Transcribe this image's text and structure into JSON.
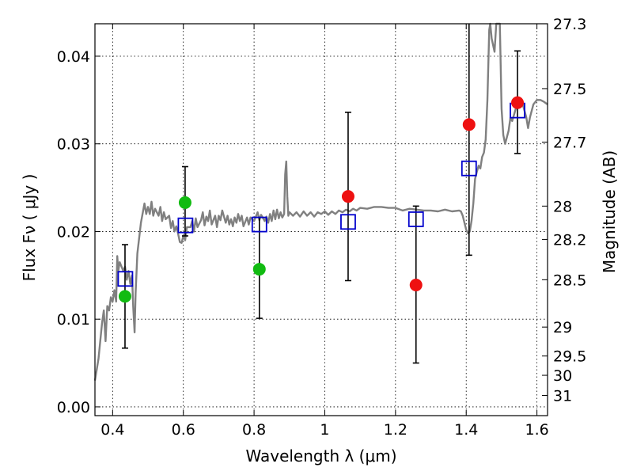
{
  "chart_data": {
    "type": "scatter",
    "xlabel": "Wavelength  λ (μm)",
    "ylabel": "Flux  Fν  ( μJy )",
    "ylabel_right": "Magnitude (AB)",
    "xlim": [
      0.35,
      1.63
    ],
    "ylim": [
      -0.001,
      0.0437
    ],
    "grid": true,
    "x_ticks": [
      0.4,
      0.6,
      0.8,
      1.0,
      1.2,
      1.4,
      1.6
    ],
    "x_tick_labels": [
      "0.4",
      "0.6",
      "0.8",
      "1",
      "1.2",
      "1.4",
      "1.6"
    ],
    "y_ticks": [
      0.0,
      0.01,
      0.02,
      0.03,
      0.04
    ],
    "y_tick_labels": [
      "0.00",
      "0.01",
      "0.02",
      "0.03",
      "0.04"
    ],
    "right_ticks": [
      {
        "label": "27.3",
        "flux": 0.0437
      },
      {
        "label": "27.5",
        "flux": 0.0363
      },
      {
        "label": "27.7",
        "flux": 0.0302
      },
      {
        "label": "28",
        "flux": 0.0229
      },
      {
        "label": "28.2",
        "flux": 0.0191
      },
      {
        "label": "28.5",
        "flux": 0.0145
      },
      {
        "label": "29",
        "flux": 0.0091
      },
      {
        "label": "29.5",
        "flux": 0.0058
      },
      {
        "label": "30",
        "flux": 0.0036
      },
      {
        "label": "31",
        "flux": 0.0013
      }
    ],
    "series": [
      {
        "kind": "template_spectrum",
        "color": "#808080",
        "points": [
          [
            0.35,
            0.003
          ],
          [
            0.36,
            0.0055
          ],
          [
            0.37,
            0.0095
          ],
          [
            0.375,
            0.011
          ],
          [
            0.38,
            0.0075
          ],
          [
            0.385,
            0.0115
          ],
          [
            0.39,
            0.011
          ],
          [
            0.395,
            0.0125
          ],
          [
            0.4,
            0.012
          ],
          [
            0.405,
            0.0133
          ],
          [
            0.41,
            0.012
          ],
          [
            0.413,
            0.0172
          ],
          [
            0.416,
            0.0155
          ],
          [
            0.42,
            0.0165
          ],
          [
            0.43,
            0.0155
          ],
          [
            0.435,
            0.016
          ],
          [
            0.44,
            0.0145
          ],
          [
            0.445,
            0.0155
          ],
          [
            0.45,
            0.014
          ],
          [
            0.455,
            0.015
          ],
          [
            0.458,
            0.0115
          ],
          [
            0.462,
            0.0085
          ],
          [
            0.465,
            0.013
          ],
          [
            0.47,
            0.0175
          ],
          [
            0.48,
            0.021
          ],
          [
            0.49,
            0.0232
          ],
          [
            0.495,
            0.022
          ],
          [
            0.5,
            0.0228
          ],
          [
            0.505,
            0.022
          ],
          [
            0.51,
            0.0234
          ],
          [
            0.515,
            0.0218
          ],
          [
            0.52,
            0.0226
          ],
          [
            0.53,
            0.0218
          ],
          [
            0.535,
            0.0228
          ],
          [
            0.54,
            0.0212
          ],
          [
            0.545,
            0.0222
          ],
          [
            0.55,
            0.0214
          ],
          [
            0.56,
            0.0218
          ],
          [
            0.565,
            0.0204
          ],
          [
            0.57,
            0.0212
          ],
          [
            0.575,
            0.02
          ],
          [
            0.58,
            0.0206
          ],
          [
            0.585,
            0.0198
          ],
          [
            0.59,
            0.0188
          ],
          [
            0.595,
            0.0187
          ],
          [
            0.6,
            0.0195
          ],
          [
            0.605,
            0.019
          ],
          [
            0.61,
            0.0205
          ],
          [
            0.62,
            0.0205
          ],
          [
            0.625,
            0.0212
          ],
          [
            0.63,
            0.02
          ],
          [
            0.635,
            0.0215
          ],
          [
            0.64,
            0.0205
          ],
          [
            0.65,
            0.0213
          ],
          [
            0.655,
            0.0222
          ],
          [
            0.66,
            0.0207
          ],
          [
            0.665,
            0.0217
          ],
          [
            0.67,
            0.0212
          ],
          [
            0.675,
            0.0224
          ],
          [
            0.68,
            0.0208
          ],
          [
            0.69,
            0.0218
          ],
          [
            0.695,
            0.0205
          ],
          [
            0.7,
            0.0218
          ],
          [
            0.705,
            0.0213
          ],
          [
            0.71,
            0.0224
          ],
          [
            0.72,
            0.021
          ],
          [
            0.725,
            0.0218
          ],
          [
            0.73,
            0.0208
          ],
          [
            0.735,
            0.0214
          ],
          [
            0.74,
            0.0206
          ],
          [
            0.745,
            0.0216
          ],
          [
            0.75,
            0.021
          ],
          [
            0.755,
            0.022
          ],
          [
            0.76,
            0.0212
          ],
          [
            0.765,
            0.0218
          ],
          [
            0.77,
            0.0206
          ],
          [
            0.78,
            0.0216
          ],
          [
            0.785,
            0.0208
          ],
          [
            0.79,
            0.0216
          ],
          [
            0.8,
            0.0212
          ],
          [
            0.81,
            0.0222
          ],
          [
            0.815,
            0.0213
          ],
          [
            0.82,
            0.0219
          ],
          [
            0.83,
            0.0212
          ],
          [
            0.835,
            0.0217
          ],
          [
            0.84,
            0.021
          ],
          [
            0.845,
            0.022
          ],
          [
            0.85,
            0.0212
          ],
          [
            0.855,
            0.0224
          ],
          [
            0.86,
            0.0214
          ],
          [
            0.865,
            0.0225
          ],
          [
            0.87,
            0.0215
          ],
          [
            0.875,
            0.0222
          ],
          [
            0.88,
            0.0216
          ],
          [
            0.885,
            0.022
          ],
          [
            0.888,
            0.0265
          ],
          [
            0.891,
            0.028
          ],
          [
            0.894,
            0.024
          ],
          [
            0.897,
            0.0218
          ],
          [
            0.9,
            0.0222
          ],
          [
            0.91,
            0.0218
          ],
          [
            0.92,
            0.0222
          ],
          [
            0.93,
            0.0217
          ],
          [
            0.94,
            0.0223
          ],
          [
            0.95,
            0.0218
          ],
          [
            0.96,
            0.0222
          ],
          [
            0.97,
            0.0217
          ],
          [
            0.98,
            0.0222
          ],
          [
            0.99,
            0.022
          ],
          [
            1.0,
            0.0223
          ],
          [
            1.01,
            0.0219
          ],
          [
            1.02,
            0.0223
          ],
          [
            1.03,
            0.022
          ],
          [
            1.04,
            0.0224
          ],
          [
            1.05,
            0.0222
          ],
          [
            1.06,
            0.0225
          ],
          [
            1.07,
            0.0223
          ],
          [
            1.08,
            0.0226
          ],
          [
            1.09,
            0.0224
          ],
          [
            1.1,
            0.0227
          ],
          [
            1.12,
            0.0226
          ],
          [
            1.14,
            0.0228
          ],
          [
            1.16,
            0.0228
          ],
          [
            1.18,
            0.0227
          ],
          [
            1.2,
            0.0227
          ],
          [
            1.22,
            0.0224
          ],
          [
            1.24,
            0.0226
          ],
          [
            1.26,
            0.0225
          ],
          [
            1.28,
            0.0224
          ],
          [
            1.3,
            0.0224
          ],
          [
            1.32,
            0.0223
          ],
          [
            1.34,
            0.0225
          ],
          [
            1.36,
            0.0223
          ],
          [
            1.38,
            0.0224
          ],
          [
            1.385,
            0.0223
          ],
          [
            1.39,
            0.0218
          ],
          [
            1.395,
            0.021
          ],
          [
            1.4,
            0.0202
          ],
          [
            1.405,
            0.0198
          ],
          [
            1.41,
            0.02
          ],
          [
            1.415,
            0.0212
          ],
          [
            1.42,
            0.0232
          ],
          [
            1.425,
            0.026
          ],
          [
            1.43,
            0.0268
          ],
          [
            1.435,
            0.0275
          ],
          [
            1.44,
            0.0272
          ],
          [
            1.445,
            0.0285
          ],
          [
            1.45,
            0.029
          ],
          [
            1.455,
            0.0305
          ],
          [
            1.46,
            0.035
          ],
          [
            1.465,
            0.043
          ],
          [
            1.468,
            0.044
          ],
          [
            1.472,
            0.042
          ],
          [
            1.48,
            0.0405
          ],
          [
            1.485,
            0.044
          ],
          [
            1.49,
            0.0437
          ],
          [
            1.495,
            0.044
          ],
          [
            1.5,
            0.034
          ],
          [
            1.505,
            0.031
          ],
          [
            1.51,
            0.03
          ],
          [
            1.52,
            0.0315
          ],
          [
            1.525,
            0.033
          ],
          [
            1.53,
            0.0326
          ],
          [
            1.54,
            0.034
          ],
          [
            1.55,
            0.0348
          ],
          [
            1.56,
            0.0345
          ],
          [
            1.57,
            0.033
          ],
          [
            1.575,
            0.0318
          ],
          [
            1.58,
            0.033
          ],
          [
            1.59,
            0.0345
          ],
          [
            1.6,
            0.035
          ],
          [
            1.61,
            0.035
          ],
          [
            1.62,
            0.0348
          ],
          [
            1.63,
            0.0345
          ]
        ]
      },
      {
        "kind": "model_photometry",
        "marker": "open-square",
        "color": "#0000cc",
        "x": [
          0.436,
          0.606,
          0.815,
          1.066,
          1.258,
          1.408,
          1.545
        ],
        "y": [
          0.0146,
          0.0207,
          0.0208,
          0.0211,
          0.0214,
          0.0272,
          0.0338
        ]
      },
      {
        "kind": "observed_photometry",
        "marker": "filled-circle",
        "color": "#11bb11",
        "x": [
          0.435,
          0.605,
          0.815
        ],
        "y": [
          0.0126,
          0.0233,
          0.0157
        ],
        "yerr_low": [
          0.0059,
          0.0038,
          0.0056
        ],
        "yerr_high": [
          0.0059,
          0.0041,
          0.0059
        ]
      },
      {
        "kind": "observed_photometry",
        "marker": "filled-circle",
        "color": "#ee1111",
        "x": [
          1.066,
          1.258,
          1.408,
          1.545
        ],
        "y": [
          0.024,
          0.0139,
          0.0322,
          0.0347
        ],
        "yerr_low": [
          0.0096,
          0.0089,
          0.0149,
          0.0058
        ],
        "yerr_high": [
          0.0096,
          0.009,
          0.0125,
          0.0059
        ]
      }
    ]
  }
}
